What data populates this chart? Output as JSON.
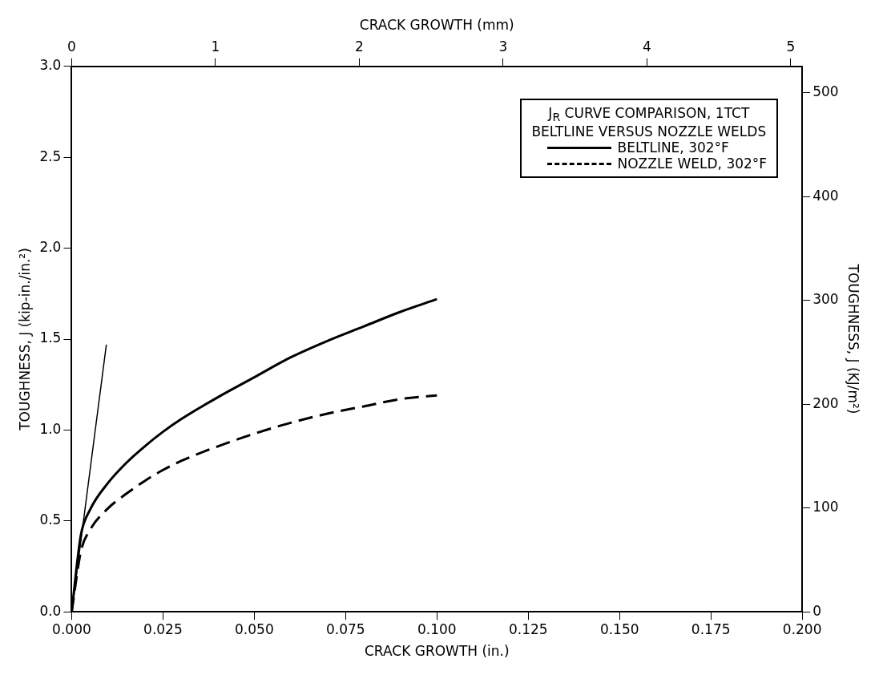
{
  "chart_data": {
    "type": "line",
    "xlabel": "CRACK GROWTH (in.)",
    "x2label": "CRACK GROWTH (mm)",
    "ylabel": "TOUGHNESS, J (kip-in./in.²)",
    "y2label": "TOUGHNESS, J (KJ/m²)",
    "legend_title": "J$_{R}$ CURVE COMPARISON, 1TCT\nBELTLINE VERSUS NOZZLE WELDS",
    "legend": "top right",
    "grid": false,
    "marker": "none",
    "xlim": [
      0,
      0.2
    ],
    "xticks": [
      {
        "value": 0,
        "label": "0.000"
      },
      {
        "value": 0.025,
        "label": "0.025"
      },
      {
        "value": 0.05,
        "label": "0.050"
      },
      {
        "value": 0.075,
        "label": "0.075"
      },
      {
        "value": 0.1,
        "label": "0.100"
      },
      {
        "value": 0.125,
        "label": "0.125"
      },
      {
        "value": 0.15,
        "label": "0.150"
      },
      {
        "value": 0.175,
        "label": "0.175"
      },
      {
        "value": 0.2,
        "label": "0.200"
      }
    ],
    "x2lim": [
      0,
      5.08
    ],
    "x2ticks": [
      0,
      1,
      2,
      3,
      4,
      5
    ],
    "ylim": [
      0,
      3
    ],
    "yticks": [
      {
        "value": 0,
        "label": "0.0"
      },
      {
        "value": 0.5,
        "label": "0.5"
      },
      {
        "value": 1,
        "label": "1.0"
      },
      {
        "value": 1.5,
        "label": "1.5"
      },
      {
        "value": 2,
        "label": "2.0"
      },
      {
        "value": 2.5,
        "label": "2.5"
      },
      {
        "value": 3,
        "label": "3.0"
      }
    ],
    "y2lim": [
      0,
      525.3
    ],
    "y2ticks": [
      0,
      100,
      200,
      300,
      400,
      500
    ],
    "series": [
      {
        "name": "BELTLINE, 302°F",
        "color": "#000000",
        "line_style": "solid",
        "x": [
          0,
          0.0025,
          0.005,
          0.01,
          0.015,
          0.02,
          0.025,
          0.03,
          0.04,
          0.05,
          0.06,
          0.07,
          0.08,
          0.09,
          0.1
        ],
        "values": [
          0,
          0.42,
          0.56,
          0.71,
          0.82,
          0.91,
          0.99,
          1.06,
          1.18,
          1.29,
          1.4,
          1.49,
          1.57,
          1.65,
          1.72
        ]
      },
      {
        "name": "NOZZLE WELD, 302°F",
        "color": "#000000",
        "line_style": "dashed",
        "x": [
          0,
          0.0025,
          0.005,
          0.01,
          0.015,
          0.02,
          0.025,
          0.03,
          0.04,
          0.05,
          0.06,
          0.07,
          0.08,
          0.09,
          0.1
        ],
        "values": [
          0,
          0.33,
          0.45,
          0.57,
          0.65,
          0.72,
          0.78,
          0.83,
          0.91,
          0.98,
          1.04,
          1.09,
          1.13,
          1.17,
          1.19
        ]
      },
      {
        "color": "#000000",
        "line_style": "solid",
        "x": [
          0,
          0.0095
        ],
        "values": [
          0,
          1.47
        ]
      }
    ]
  }
}
